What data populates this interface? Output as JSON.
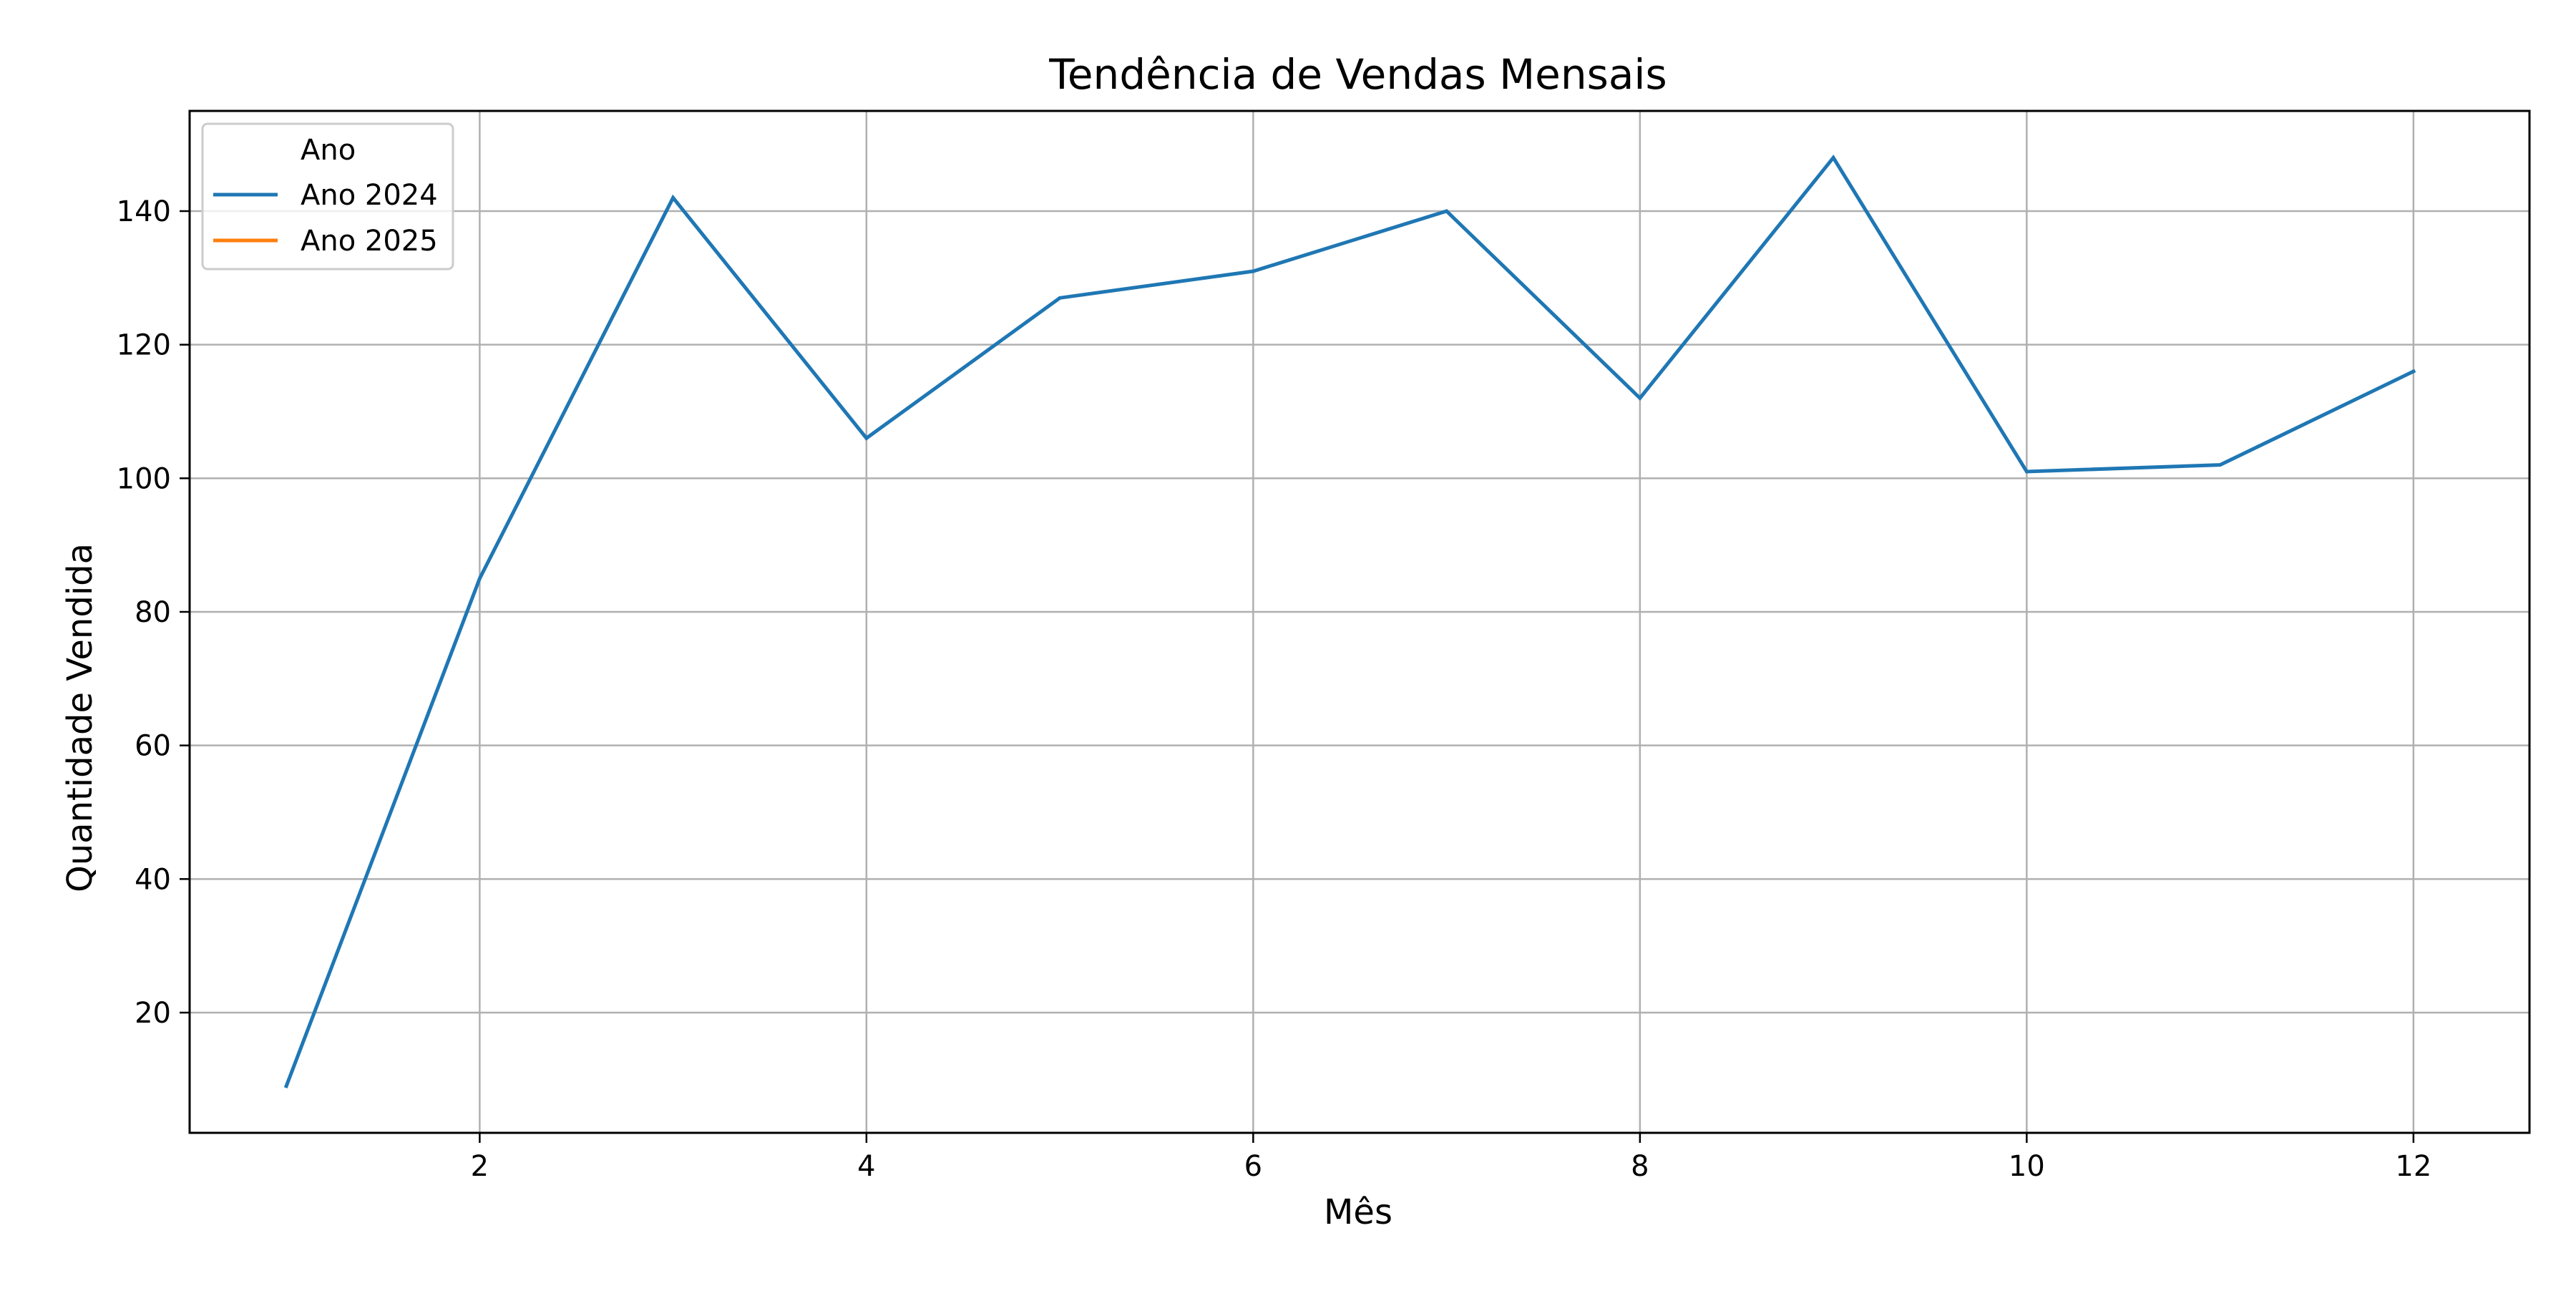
{
  "chart_data": {
    "type": "line",
    "title": "Tendência de Vendas Mensais",
    "xlabel": "Mês",
    "ylabel": "Quantidade Vendida",
    "xlim": [
      0.5,
      12.6
    ],
    "ylim": [
      2,
      155
    ],
    "xticks": [
      2,
      4,
      6,
      8,
      10,
      12
    ],
    "yticks": [
      20,
      40,
      60,
      80,
      100,
      120,
      140
    ],
    "grid": true,
    "legend": {
      "title": "Ano",
      "placement": "top-left"
    },
    "series": [
      {
        "name": "Ano 2024",
        "color": "#1f77b4",
        "x": [
          1,
          2,
          3,
          4,
          5,
          6,
          7,
          8,
          9,
          10,
          11,
          12
        ],
        "values": [
          9,
          85,
          142,
          106,
          127,
          131,
          140,
          112,
          148,
          101,
          102,
          116
        ]
      },
      {
        "name": "Ano 2025",
        "color": "#ff7f0e",
        "x": [],
        "values": []
      }
    ]
  }
}
